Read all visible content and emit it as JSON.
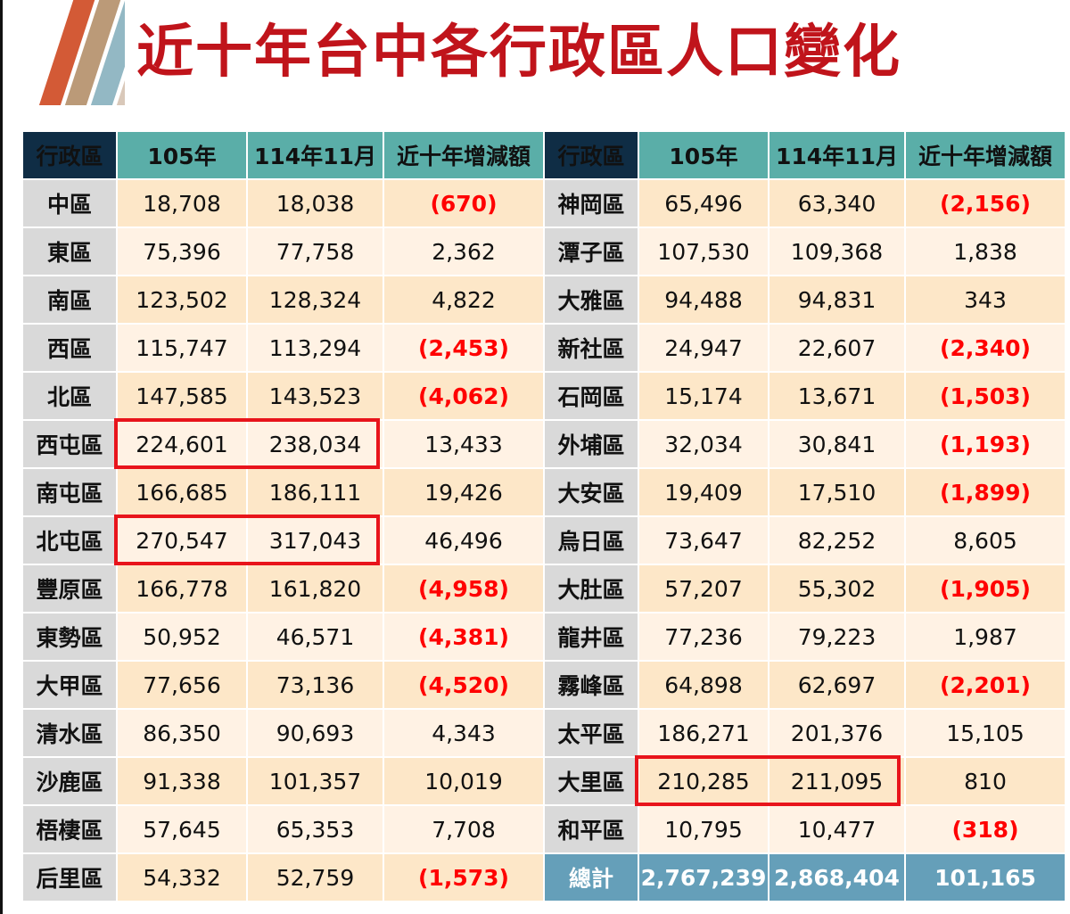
{
  "title": "近十年台中各行政區人口變化",
  "colors": {
    "title": "#c0141b",
    "header_district": "#0f2d45",
    "header_value": "#5aaea8",
    "district_cell": "#d9d9d9",
    "row_dark": "#fde7c8",
    "row_light": "#fff2e4",
    "negative": "#ff0000",
    "total_row": "#659fb9",
    "highlight_box": "#e8141b",
    "stripes": [
      "#d35a36",
      "#bb9a78",
      "#93b8c4",
      "#d9c8b9"
    ]
  },
  "headers": [
    "行政區",
    "105年",
    "114年11月",
    "近十年增減額"
  ],
  "left": [
    {
      "district": "中區",
      "y105": "18,708",
      "y114": "18,038",
      "change": "(670)",
      "neg": true
    },
    {
      "district": "東區",
      "y105": "75,396",
      "y114": "77,758",
      "change": "2,362",
      "neg": false
    },
    {
      "district": "南區",
      "y105": "123,502",
      "y114": "128,324",
      "change": "4,822",
      "neg": false
    },
    {
      "district": "西區",
      "y105": "115,747",
      "y114": "113,294",
      "change": "(2,453)",
      "neg": true
    },
    {
      "district": "北區",
      "y105": "147,585",
      "y114": "143,523",
      "change": "(4,062)",
      "neg": true
    },
    {
      "district": "西屯區",
      "y105": "224,601",
      "y114": "238,034",
      "change": "13,433",
      "neg": false
    },
    {
      "district": "南屯區",
      "y105": "166,685",
      "y114": "186,111",
      "change": "19,426",
      "neg": false
    },
    {
      "district": "北屯區",
      "y105": "270,547",
      "y114": "317,043",
      "change": "46,496",
      "neg": false
    },
    {
      "district": "豐原區",
      "y105": "166,778",
      "y114": "161,820",
      "change": "(4,958)",
      "neg": true
    },
    {
      "district": "東勢區",
      "y105": "50,952",
      "y114": "46,571",
      "change": "(4,381)",
      "neg": true
    },
    {
      "district": "大甲區",
      "y105": "77,656",
      "y114": "73,136",
      "change": "(4,520)",
      "neg": true
    },
    {
      "district": "清水區",
      "y105": "86,350",
      "y114": "90,693",
      "change": "4,343",
      "neg": false
    },
    {
      "district": "沙鹿區",
      "y105": "91,338",
      "y114": "101,357",
      "change": "10,019",
      "neg": false
    },
    {
      "district": "梧棲區",
      "y105": "57,645",
      "y114": "65,353",
      "change": "7,708",
      "neg": false
    },
    {
      "district": "后里區",
      "y105": "54,332",
      "y114": "52,759",
      "change": "(1,573)",
      "neg": true
    }
  ],
  "right": [
    {
      "district": "神岡區",
      "y105": "65,496",
      "y114": "63,340",
      "change": "(2,156)",
      "neg": true
    },
    {
      "district": "潭子區",
      "y105": "107,530",
      "y114": "109,368",
      "change": "1,838",
      "neg": false
    },
    {
      "district": "大雅區",
      "y105": "94,488",
      "y114": "94,831",
      "change": "343",
      "neg": false
    },
    {
      "district": "新社區",
      "y105": "24,947",
      "y114": "22,607",
      "change": "(2,340)",
      "neg": true
    },
    {
      "district": "石岡區",
      "y105": "15,174",
      "y114": "13,671",
      "change": "(1,503)",
      "neg": true
    },
    {
      "district": "外埔區",
      "y105": "32,034",
      "y114": "30,841",
      "change": "(1,193)",
      "neg": true
    },
    {
      "district": "大安區",
      "y105": "19,409",
      "y114": "17,510",
      "change": "(1,899)",
      "neg": true
    },
    {
      "district": "烏日區",
      "y105": "73,647",
      "y114": "82,252",
      "change": "8,605",
      "neg": false
    },
    {
      "district": "大肚區",
      "y105": "57,207",
      "y114": "55,302",
      "change": "(1,905)",
      "neg": true
    },
    {
      "district": "龍井區",
      "y105": "77,236",
      "y114": "79,223",
      "change": "1,987",
      "neg": false
    },
    {
      "district": "霧峰區",
      "y105": "64,898",
      "y114": "62,697",
      "change": "(2,201)",
      "neg": true
    },
    {
      "district": "太平區",
      "y105": "186,271",
      "y114": "201,376",
      "change": "15,105",
      "neg": false
    },
    {
      "district": "大里區",
      "y105": "210,285",
      "y114": "211,095",
      "change": "810",
      "neg": false
    },
    {
      "district": "和平區",
      "y105": "10,795",
      "y114": "10,477",
      "change": "(318)",
      "neg": true
    }
  ],
  "total": {
    "label": "總計",
    "y105": "2,767,239",
    "y114": "2,868,404",
    "change": "101,165"
  },
  "highlighted": [
    "西屯區",
    "北屯區",
    "大里區"
  ],
  "chart_data": {
    "type": "table",
    "title": "近十年台中各行政區人口變化",
    "columns": [
      "行政區",
      "105年",
      "114年11月",
      "近十年增減額"
    ],
    "rows": [
      [
        "中區",
        18708,
        18038,
        -670
      ],
      [
        "東區",
        75396,
        77758,
        2362
      ],
      [
        "南區",
        123502,
        128324,
        4822
      ],
      [
        "西區",
        115747,
        113294,
        -2453
      ],
      [
        "北區",
        147585,
        143523,
        -4062
      ],
      [
        "西屯區",
        224601,
        238034,
        13433
      ],
      [
        "南屯區",
        166685,
        186111,
        19426
      ],
      [
        "北屯區",
        270547,
        317043,
        46496
      ],
      [
        "豐原區",
        166778,
        161820,
        -4958
      ],
      [
        "東勢區",
        50952,
        46571,
        -4381
      ],
      [
        "大甲區",
        77656,
        73136,
        -4520
      ],
      [
        "清水區",
        86350,
        90693,
        4343
      ],
      [
        "沙鹿區",
        91338,
        101357,
        10019
      ],
      [
        "梧棲區",
        57645,
        65353,
        7708
      ],
      [
        "后里區",
        54332,
        52759,
        -1573
      ],
      [
        "神岡區",
        65496,
        63340,
        -2156
      ],
      [
        "潭子區",
        107530,
        109368,
        1838
      ],
      [
        "大雅區",
        94488,
        94831,
        343
      ],
      [
        "新社區",
        24947,
        22607,
        -2340
      ],
      [
        "石岡區",
        15174,
        13671,
        -1503
      ],
      [
        "外埔區",
        32034,
        30841,
        -1193
      ],
      [
        "大安區",
        19409,
        17510,
        -1899
      ],
      [
        "烏日區",
        73647,
        82252,
        8605
      ],
      [
        "大肚區",
        57207,
        55302,
        -1905
      ],
      [
        "龍井區",
        77236,
        79223,
        1987
      ],
      [
        "霧峰區",
        64898,
        62697,
        -2201
      ],
      [
        "太平區",
        186271,
        201376,
        15105
      ],
      [
        "大里區",
        210285,
        211095,
        810
      ],
      [
        "和平區",
        10795,
        10477,
        -318
      ],
      [
        "總計",
        2767239,
        2868404,
        101165
      ]
    ],
    "annotations": [
      "Red boxes highlight 西屯區, 北屯區, 大里區 population values",
      "Negative changes shown in red parentheses"
    ]
  }
}
